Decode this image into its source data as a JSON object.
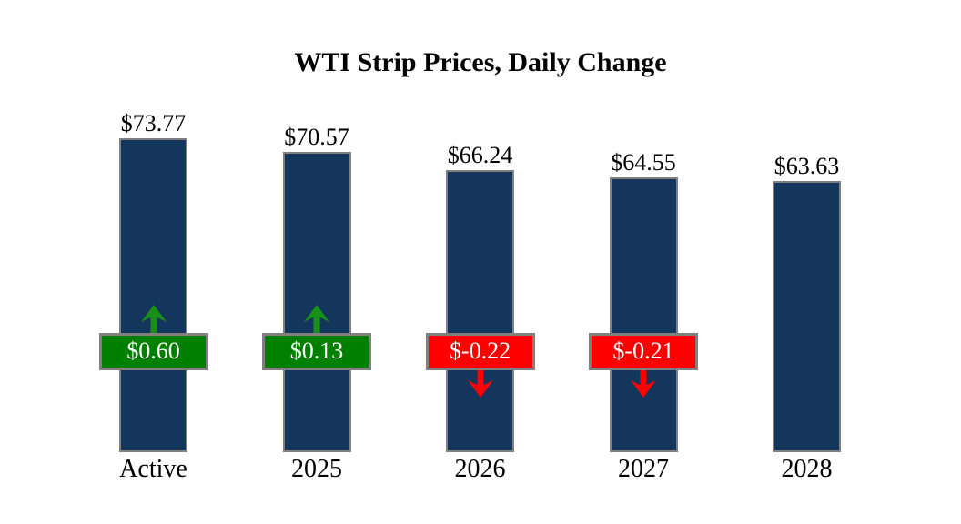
{
  "chart_data": {
    "type": "bar",
    "title": "WTI Strip Prices, Daily Change",
    "categories": [
      "Active",
      "2025",
      "2026",
      "2027",
      "2028"
    ],
    "values": [
      73.77,
      70.57,
      66.24,
      64.55,
      63.63
    ],
    "bar_labels": [
      "$73.77",
      "$70.57",
      "$66.24",
      "$64.55",
      "$63.63"
    ],
    "daily_changes": [
      {
        "label": "$0.60",
        "value": 0.6,
        "direction": "up"
      },
      {
        "label": "$0.13",
        "value": 0.13,
        "direction": "up"
      },
      {
        "label": "$-0.22",
        "value": -0.22,
        "direction": "down"
      },
      {
        "label": "$-0.21",
        "value": -0.21,
        "direction": "down"
      },
      null
    ],
    "xlabel": "",
    "ylabel": "",
    "ylim": [
      0,
      78
    ],
    "grid": false,
    "legend": "none"
  },
  "colors": {
    "bar": "#14355c",
    "bar_border": "#808080",
    "badge_up_bg": "#008000",
    "badge_down_bg": "#fe0000",
    "badge_border": "#808080",
    "badge_text": "#ffffff",
    "arrow_up": "#189018",
    "arrow_down": "#fe0000",
    "title_text": "#000000",
    "background": "#ffffff"
  }
}
